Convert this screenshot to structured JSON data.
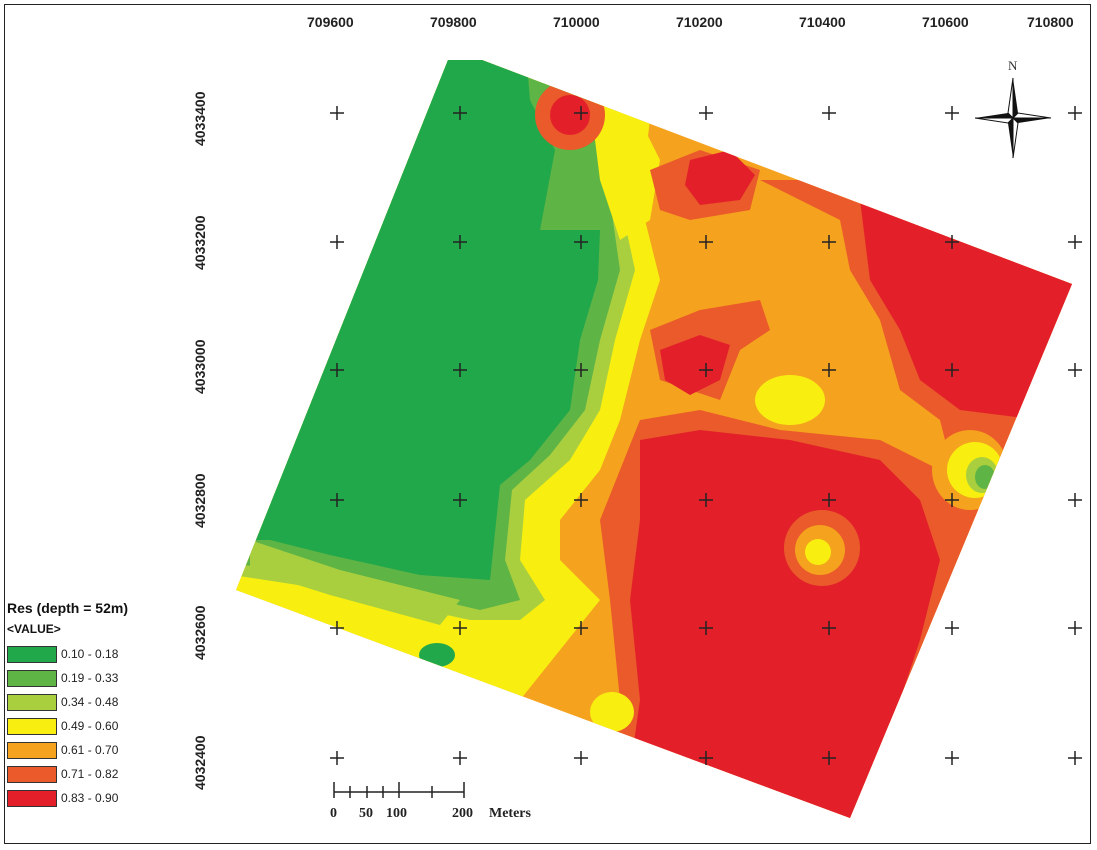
{
  "x_axis": {
    "ticks": [
      "709600",
      "709800",
      "710000",
      "710200",
      "710400",
      "710600",
      "710800"
    ]
  },
  "y_axis": {
    "ticks": [
      "4033400",
      "4033200",
      "4033000",
      "4032800",
      "4032600",
      "4032400"
    ]
  },
  "legend": {
    "title": "Res (depth = 52m)",
    "subtitle": "<VALUE>",
    "classes": [
      {
        "label": "0.10 - 0.18",
        "color": "#21a84a"
      },
      {
        "label": "0.19 - 0.33",
        "color": "#5fb446"
      },
      {
        "label": "0.34 - 0.48",
        "color": "#a9cf3e"
      },
      {
        "label": "0.49 - 0.60",
        "color": "#f8ef10"
      },
      {
        "label": "0.61 - 0.70",
        "color": "#f5a21e"
      },
      {
        "label": "0.71 - 0.82",
        "color": "#ea5a2a"
      },
      {
        "label": "0.83 - 0.90",
        "color": "#e3202a"
      }
    ]
  },
  "north_arrow": {
    "label": "N",
    "icon": "north-arrow-icon"
  },
  "scale_bar": {
    "labels": [
      "0",
      "50",
      "100",
      "200"
    ],
    "unit": "Meters"
  },
  "grid": {
    "marker": "plus-icon",
    "columns": 7,
    "rows": 6
  }
}
